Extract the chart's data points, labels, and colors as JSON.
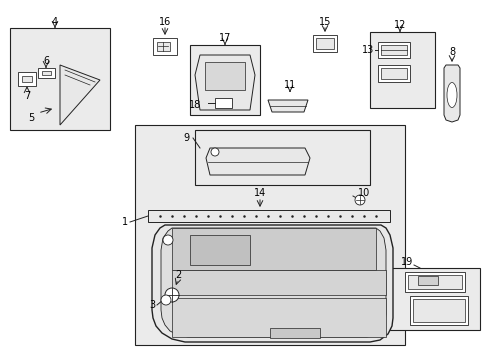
{
  "bg_color": "#ffffff",
  "fig_width": 4.89,
  "fig_height": 3.6,
  "dpi": 100,
  "line_color": "#222222",
  "fill_light": "#e8e8e8",
  "fill_mid": "#d0d0d0",
  "fill_box": "#ebebeb",
  "label_fontsize": 7.0,
  "label_color": "#000000"
}
